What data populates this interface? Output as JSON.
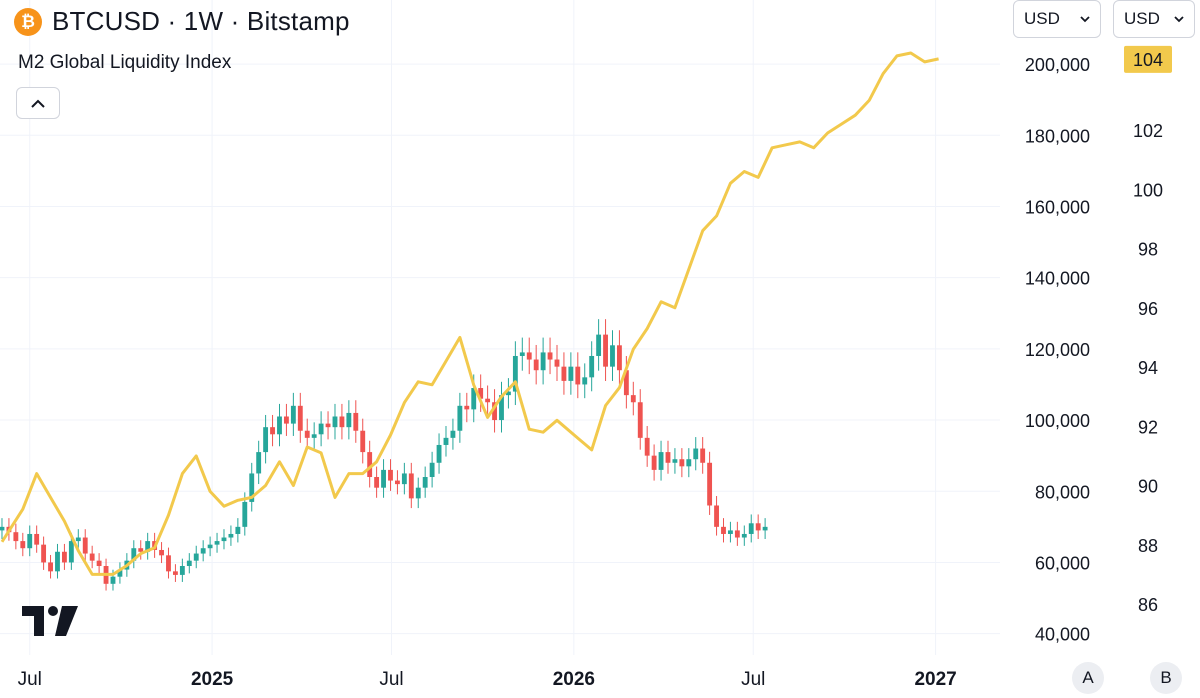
{
  "header": {
    "icon": "bitcoin-icon",
    "icon_glyph": "₿",
    "title": "BTCUSD · 1W · Bitstamp",
    "indicator": "M2 Global Liquidity Index",
    "collapse_glyph": "^"
  },
  "currency_selectors": [
    {
      "value": "USD"
    },
    {
      "value": "USD"
    }
  ],
  "scale_buttons": [
    {
      "label": "A"
    },
    {
      "label": "B"
    }
  ],
  "colors": {
    "up": "#26a69a",
    "down": "#ef5350",
    "m2_line": "#f2c94c",
    "badge_bg": "#f2c94c",
    "grid": "#f0f3fa"
  },
  "chart_data": {
    "type": "line",
    "price_axis": {
      "label": "BTCUSD",
      "ticks": [
        "40,000",
        "60,000",
        "80,000",
        "100,000",
        "120,000",
        "140,000",
        "160,000",
        "180,000",
        "200,000"
      ],
      "values": [
        40000,
        60000,
        80000,
        100000,
        120000,
        140000,
        160000,
        180000,
        200000
      ],
      "range": [
        34000,
        218000
      ]
    },
    "m2_axis": {
      "label": "M2 Global Liquidity Index",
      "ticks": [
        "86",
        "88",
        "90",
        "92",
        "94",
        "96",
        "98",
        "100",
        "102"
      ],
      "values": [
        86,
        88,
        90,
        92,
        94,
        96,
        98,
        100,
        102
      ],
      "last_value_badge": "104"
    },
    "x_axis": {
      "ticks": [
        "Jul",
        "2025",
        "Jul",
        "2026",
        "Jul",
        "2027"
      ],
      "bold": [
        false,
        true,
        false,
        true,
        false,
        true
      ],
      "dates": [
        "2024-07-01",
        "2025-01-01",
        "2025-07-01",
        "2026-01-01",
        "2026-07-01",
        "2027-01-01"
      ],
      "range": [
        "2024-06-01",
        "2027-03-07"
      ]
    },
    "series": [
      {
        "name": "BTCUSD",
        "kind": "candlestick",
        "start": "2024-06-03",
        "interval": "1W",
        "closes": [
          70000,
          68500,
          66000,
          64000,
          68000,
          65000,
          60000,
          57500,
          63000,
          60000,
          66000,
          67000,
          62500,
          60500,
          59000,
          54000,
          56000,
          58000,
          60500,
          64000,
          63000,
          66000,
          63500,
          62000,
          57500,
          56500,
          59000,
          60500,
          62500,
          64000,
          65000,
          66000,
          67000,
          68000,
          70000,
          77000,
          85000,
          91000,
          98000,
          96000,
          101000,
          99000,
          104000,
          97000,
          95000,
          96000,
          99000,
          98000,
          101000,
          98000,
          102000,
          97000,
          91000,
          84000,
          81000,
          86000,
          83000,
          82000,
          85000,
          78000,
          81000,
          84000,
          88000,
          93000,
          95000,
          97000,
          104000,
          103000,
          109000,
          106000,
          105000,
          100000,
          107000,
          108000,
          118000,
          119000,
          117000,
          114000,
          119000,
          117000,
          115000,
          111000,
          115000,
          110000,
          112000,
          118000,
          124000,
          115000,
          121000,
          114000,
          107000,
          105000,
          95000,
          90000,
          86000,
          91000,
          88000,
          89000,
          87000,
          89000,
          92000,
          88000,
          76000,
          70000,
          68000,
          69000,
          67000,
          68000,
          71000,
          69000,
          70000
        ],
        "opens": [
          69000,
          70000,
          68500,
          66000,
          64000,
          68000,
          65000,
          60000,
          57500,
          63000,
          60000,
          66000,
          67000,
          62500,
          60500,
          59000,
          54000,
          56000,
          58000,
          60500,
          64000,
          63000,
          66000,
          63500,
          62000,
          57500,
          56500,
          59000,
          60500,
          62500,
          64000,
          65000,
          66000,
          67000,
          68000,
          70000,
          77000,
          85000,
          91000,
          98000,
          96000,
          101000,
          99000,
          104000,
          97000,
          95000,
          96000,
          99000,
          98000,
          101000,
          98000,
          102000,
          97000,
          91000,
          84000,
          81000,
          86000,
          83000,
          82000,
          85000,
          78000,
          81000,
          84000,
          88000,
          93000,
          95000,
          97000,
          104000,
          103000,
          109000,
          106000,
          105000,
          100000,
          107000,
          108000,
          118000,
          119000,
          117000,
          114000,
          119000,
          117000,
          115000,
          111000,
          115000,
          110000,
          112000,
          118000,
          124000,
          115000,
          121000,
          114000,
          107000,
          105000,
          95000,
          90000,
          86000,
          91000,
          88000,
          89000,
          87000,
          89000,
          92000,
          88000,
          76000,
          70000,
          68000,
          69000,
          67000,
          68000,
          71000,
          69000
        ]
      },
      {
        "name": "M2 Global Liquidity Index",
        "kind": "line",
        "points": [
          [
            "2024-06-03",
            88.1
          ],
          [
            "2024-06-24",
            89.2
          ],
          [
            "2024-07-08",
            90.4
          ],
          [
            "2024-07-22",
            89.6
          ],
          [
            "2024-08-05",
            88.8
          ],
          [
            "2024-08-19",
            87.8
          ],
          [
            "2024-09-02",
            87.0
          ],
          [
            "2024-09-23",
            87.0
          ],
          [
            "2024-10-07",
            87.3
          ],
          [
            "2024-10-21",
            87.7
          ],
          [
            "2024-11-04",
            87.9
          ],
          [
            "2024-11-18",
            89.0
          ],
          [
            "2024-12-02",
            90.4
          ],
          [
            "2024-12-16",
            91.0
          ],
          [
            "2024-12-30",
            89.8
          ],
          [
            "2025-01-13",
            89.3
          ],
          [
            "2025-01-27",
            89.5
          ],
          [
            "2025-02-10",
            89.6
          ],
          [
            "2025-02-24",
            90.0
          ],
          [
            "2025-03-10",
            90.8
          ],
          [
            "2025-03-24",
            90.0
          ],
          [
            "2025-04-07",
            91.3
          ],
          [
            "2025-04-21",
            91.1
          ],
          [
            "2025-05-05",
            89.6
          ],
          [
            "2025-05-19",
            90.4
          ],
          [
            "2025-06-02",
            90.4
          ],
          [
            "2025-06-16",
            90.8
          ],
          [
            "2025-06-30",
            91.7
          ],
          [
            "2025-07-14",
            92.8
          ],
          [
            "2025-07-28",
            93.5
          ],
          [
            "2025-08-11",
            93.4
          ],
          [
            "2025-08-25",
            94.2
          ],
          [
            "2025-09-08",
            95.0
          ],
          [
            "2025-09-22",
            93.4
          ],
          [
            "2025-10-06",
            92.3
          ],
          [
            "2025-10-20",
            93.0
          ],
          [
            "2025-11-03",
            93.5
          ],
          [
            "2025-11-17",
            91.9
          ],
          [
            "2025-12-01",
            91.8
          ],
          [
            "2025-12-15",
            92.2
          ],
          [
            "2026-01-05",
            91.6
          ],
          [
            "2026-01-19",
            91.2
          ],
          [
            "2026-02-02",
            92.7
          ],
          [
            "2026-02-16",
            93.3
          ],
          [
            "2026-03-02",
            94.6
          ],
          [
            "2026-03-16",
            95.3
          ],
          [
            "2026-03-30",
            96.2
          ],
          [
            "2026-04-13",
            96.0
          ],
          [
            "2026-04-27",
            97.3
          ],
          [
            "2026-05-11",
            98.6
          ],
          [
            "2026-05-25",
            99.1
          ],
          [
            "2026-06-08",
            100.2
          ],
          [
            "2026-06-22",
            100.6
          ],
          [
            "2026-07-06",
            100.4
          ],
          [
            "2026-07-20",
            101.4
          ],
          [
            "2026-08-03",
            101.5
          ],
          [
            "2026-08-17",
            101.6
          ],
          [
            "2026-08-31",
            101.4
          ],
          [
            "2026-09-14",
            101.9
          ],
          [
            "2026-09-28",
            102.2
          ],
          [
            "2026-10-12",
            102.5
          ],
          [
            "2026-10-26",
            103.0
          ],
          [
            "2026-11-09",
            103.9
          ],
          [
            "2026-11-23",
            104.5
          ],
          [
            "2026-12-07",
            104.6
          ],
          [
            "2026-12-21",
            104.3
          ],
          [
            "2027-01-04",
            104.4
          ]
        ]
      }
    ],
    "grid": true,
    "legend": "none"
  }
}
